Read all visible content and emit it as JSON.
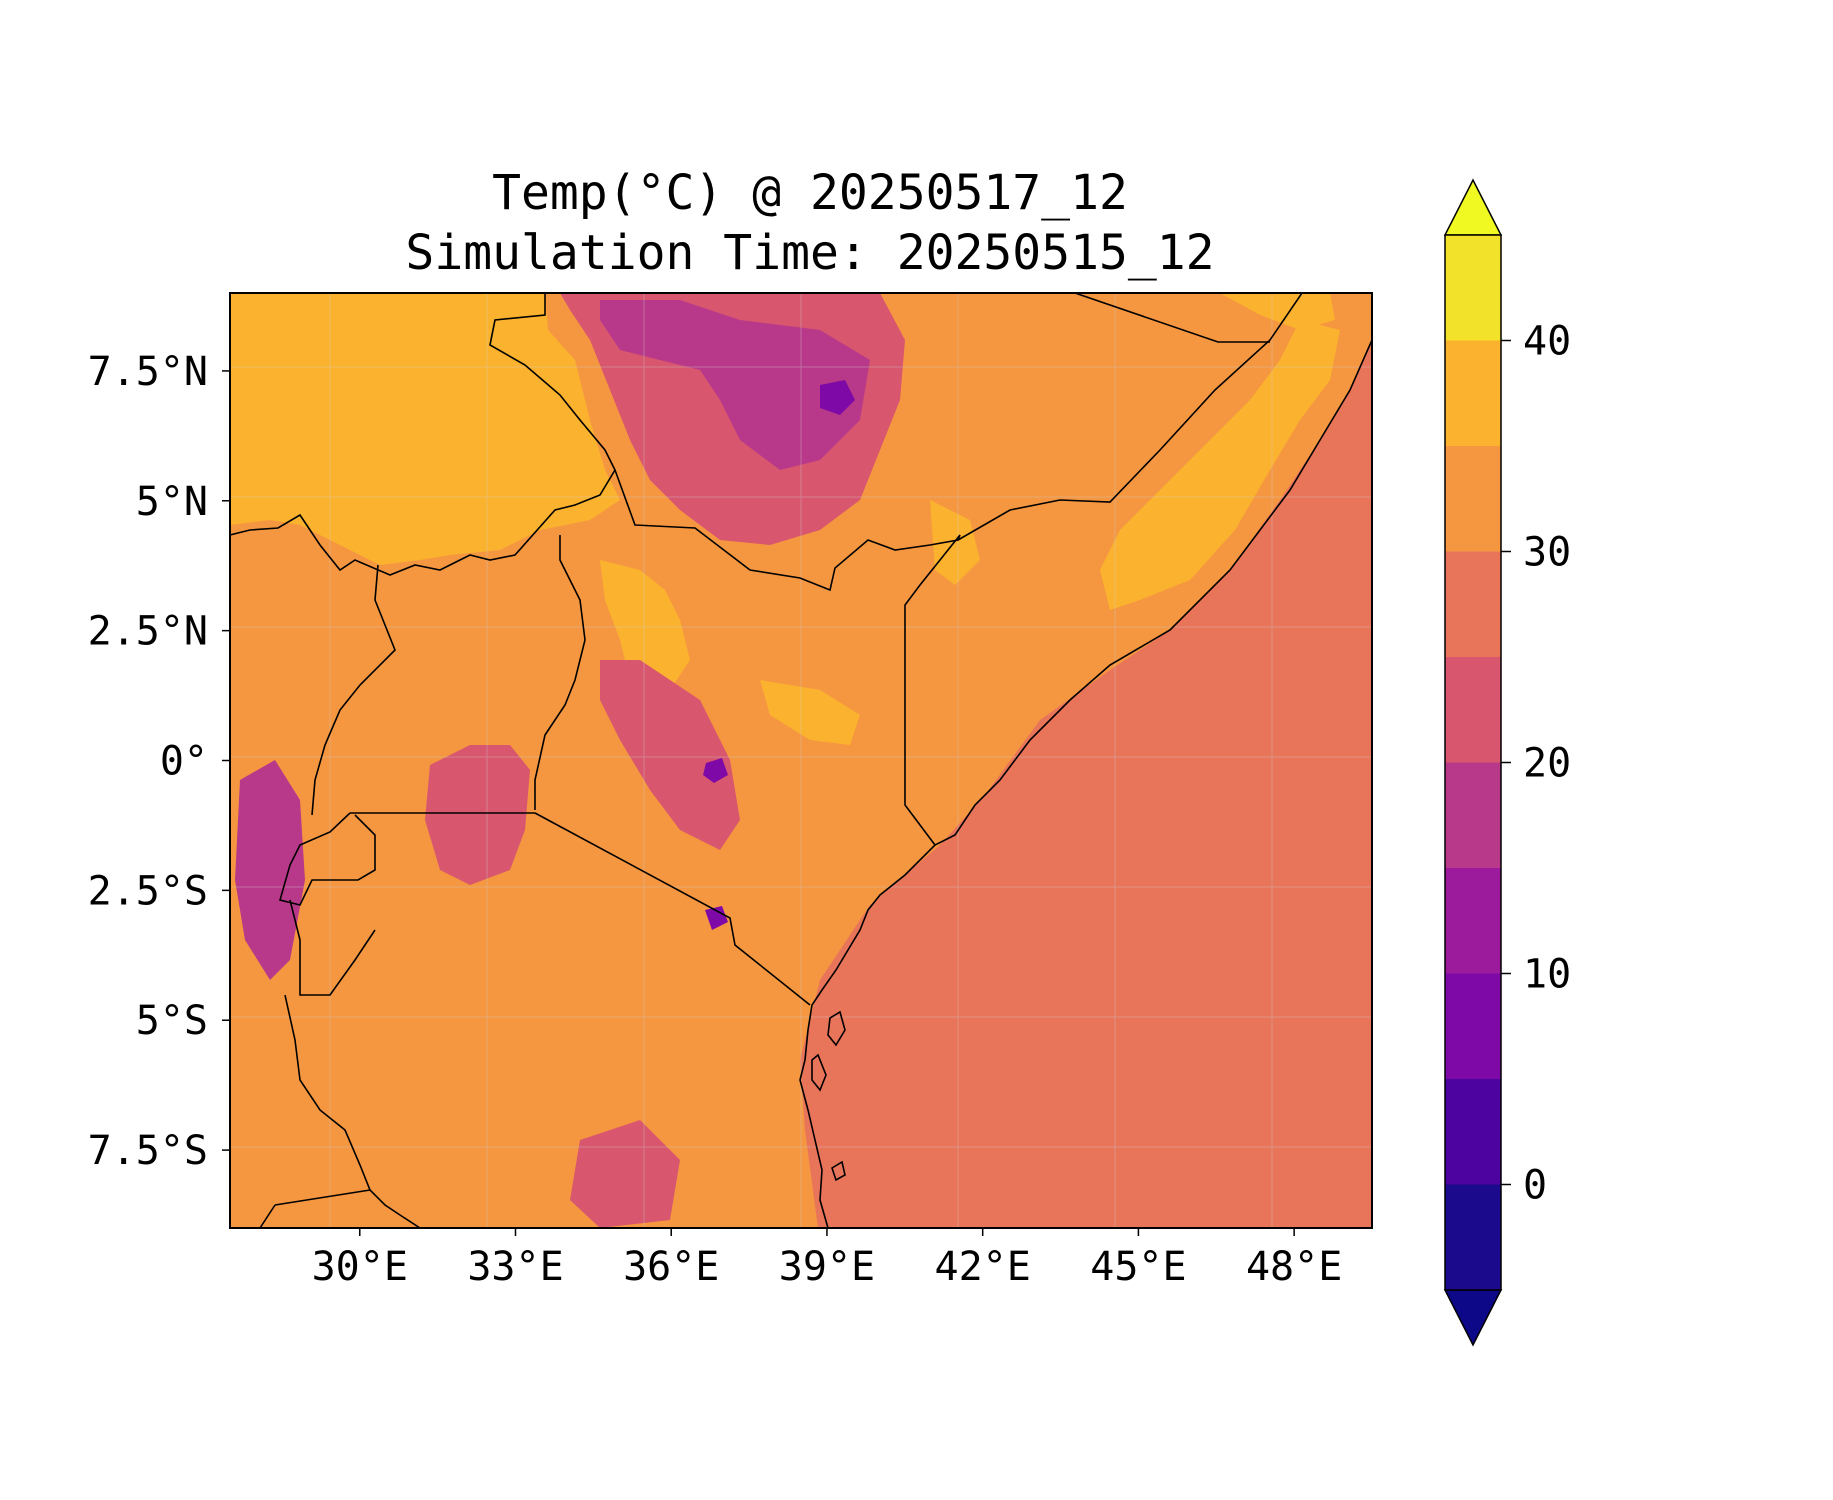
{
  "title": {
    "line1": "Temp(°C) @ 20250517_12",
    "line2": "Simulation Time: 20250515_12"
  },
  "map": {
    "lon_range": [
      27.5,
      49.5
    ],
    "lat_range": [
      -9,
      9
    ],
    "x_ticks": [
      {
        "value": 30,
        "label": "30°E"
      },
      {
        "value": 33,
        "label": "33°E"
      },
      {
        "value": 36,
        "label": "36°E"
      },
      {
        "value": 39,
        "label": "39°E"
      },
      {
        "value": 42,
        "label": "42°E"
      },
      {
        "value": 45,
        "label": "45°E"
      },
      {
        "value": 48,
        "label": "48°E"
      }
    ],
    "y_ticks": [
      {
        "value": 7.5,
        "label": "7.5°N"
      },
      {
        "value": 5,
        "label": "5°N"
      },
      {
        "value": 2.5,
        "label": "2.5°N"
      },
      {
        "value": 0,
        "label": "0°"
      },
      {
        "value": -2.5,
        "label": "2.5°S"
      },
      {
        "value": -5,
        "label": "5°S"
      },
      {
        "value": -7.5,
        "label": "7.5°S"
      }
    ],
    "gridlines": true,
    "colors": {
      "ocean": "#E8745A",
      "hot_north": "#FBB22E",
      "land_mid": "#F59740",
      "cool": "#D8566E",
      "colder": "#B8398A",
      "coldest": "#7E09A6",
      "border": "#000000"
    }
  },
  "colorbar": {
    "levels": [
      -5,
      0,
      5,
      10,
      15,
      20,
      25,
      30,
      35,
      40,
      45
    ],
    "colors": [
      "#1C0A8C",
      "#4C03A0",
      "#7E09A6",
      "#9B1B9C",
      "#B8398A",
      "#D8566E",
      "#E8745A",
      "#F59740",
      "#FBB22E",
      "#F3E22A"
    ],
    "extend_low_color": "#0D0887",
    "extend_high_color": "#F0F921",
    "ticks": [
      {
        "value": 0,
        "label": "0"
      },
      {
        "value": 10,
        "label": "10"
      },
      {
        "value": 20,
        "label": "20"
      },
      {
        "value": 30,
        "label": "30"
      },
      {
        "value": 40,
        "label": "40"
      }
    ]
  }
}
